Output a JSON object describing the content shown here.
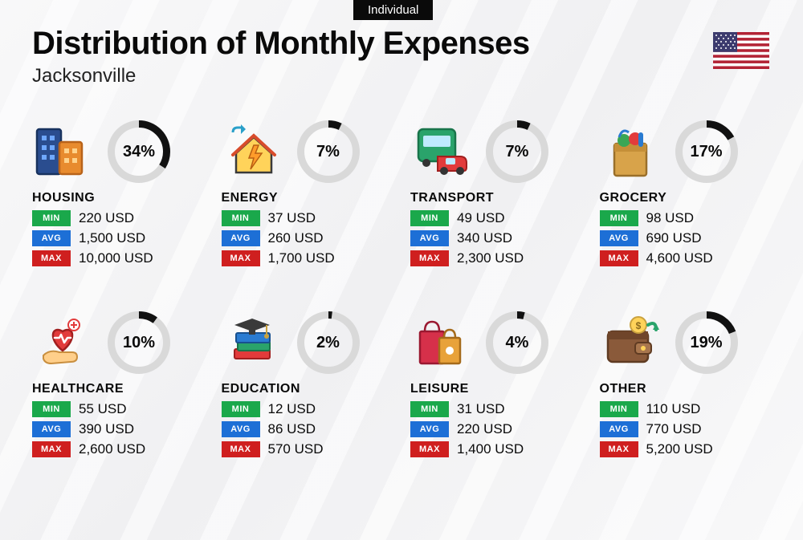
{
  "tag": "Individual",
  "title": "Distribution of Monthly Expenses",
  "subtitle": "Jacksonville",
  "currency": "USD",
  "colors": {
    "min_badge": "#1aa84b",
    "avg_badge": "#1d6fd6",
    "max_badge": "#cf1f1f",
    "donut_bg": "#d9d9d9",
    "donut_fg": "#111111",
    "text": "#0a0a0a"
  },
  "donut": {
    "size": 78,
    "thickness": 9
  },
  "labels": {
    "min": "MIN",
    "avg": "AVG",
    "max": "MAX"
  },
  "flag": {
    "stripe_red": "#b22234",
    "stripe_white": "#ffffff",
    "canton": "#3c3b6e"
  },
  "categories": [
    {
      "key": "housing",
      "name": "HOUSING",
      "percent": 34,
      "min": "220",
      "avg": "1,500",
      "max": "10,000",
      "icon": "buildings"
    },
    {
      "key": "energy",
      "name": "ENERGY",
      "percent": 7,
      "min": "37",
      "avg": "260",
      "max": "1,700",
      "icon": "energy-house"
    },
    {
      "key": "transport",
      "name": "TRANSPORT",
      "percent": 7,
      "min": "49",
      "avg": "340",
      "max": "2,300",
      "icon": "bus-car"
    },
    {
      "key": "grocery",
      "name": "GROCERY",
      "percent": 17,
      "min": "98",
      "avg": "690",
      "max": "4,600",
      "icon": "grocery-bag"
    },
    {
      "key": "healthcare",
      "name": "HEALTHCARE",
      "percent": 10,
      "min": "55",
      "avg": "390",
      "max": "2,600",
      "icon": "heart-hand"
    },
    {
      "key": "education",
      "name": "EDUCATION",
      "percent": 2,
      "min": "12",
      "avg": "86",
      "max": "570",
      "icon": "grad-books"
    },
    {
      "key": "leisure",
      "name": "LEISURE",
      "percent": 4,
      "min": "31",
      "avg": "220",
      "max": "1,400",
      "icon": "shopping-bags"
    },
    {
      "key": "other",
      "name": "OTHER",
      "percent": 19,
      "min": "110",
      "avg": "770",
      "max": "5,200",
      "icon": "wallet"
    }
  ]
}
